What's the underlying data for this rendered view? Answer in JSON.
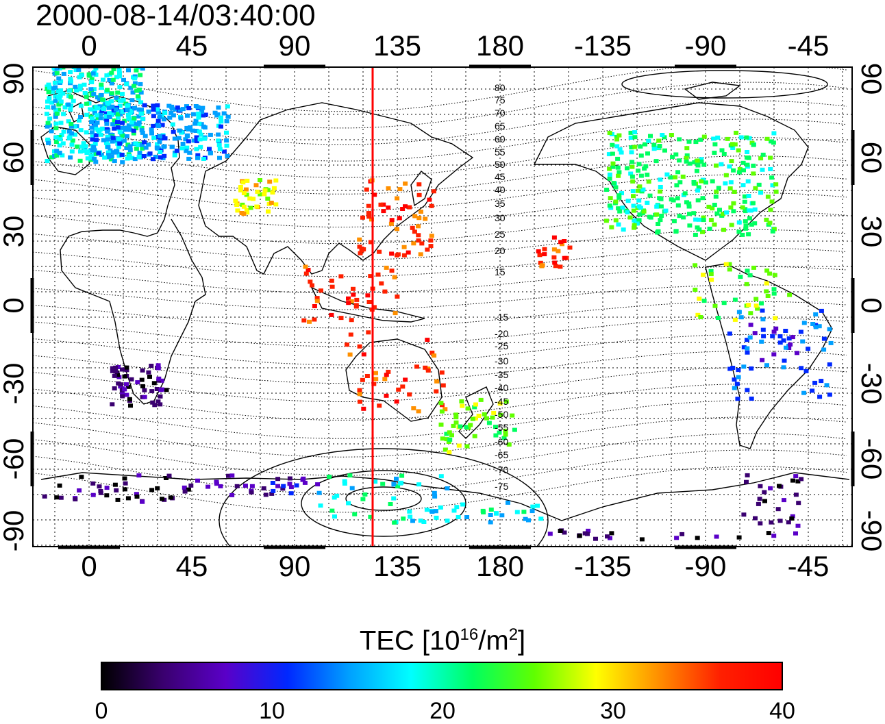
{
  "title": "2000-08-14/03:40:00",
  "top_axis_labels": [
    "0",
    "45",
    "90",
    "135",
    "180",
    "-135",
    "-90",
    "-45"
  ],
  "bottom_axis_labels": [
    "0",
    "45",
    "90",
    "135",
    "180",
    "-135",
    "-90",
    "-45"
  ],
  "left_axis_labels": [
    "90",
    "60",
    "30",
    "0",
    "-30",
    "-60",
    "-90"
  ],
  "right_axis_labels": [
    "90",
    "60",
    "30",
    "0",
    "-30",
    "-60",
    "-90"
  ],
  "contour_labels": [
    "80",
    "75",
    "70",
    "65",
    "60",
    "55",
    "50",
    "45",
    "40",
    "35",
    "30",
    "25",
    "20",
    "15",
    "-15",
    "-20",
    "-25",
    "-30",
    "-35",
    "-40",
    "-45",
    "-50",
    "-55",
    "-60",
    "-65",
    "-70",
    "-75"
  ],
  "colorbar": {
    "label_main": "TEC  [10",
    "label_exp1": "16",
    "label_mid": "/m",
    "label_exp2": "2",
    "label_end": "]",
    "tick_labels": [
      "0",
      "10",
      "20",
      "30",
      "40"
    ],
    "colors": [
      "#000000",
      "#3a0070",
      "#5a00c8",
      "#0028ff",
      "#00a0ff",
      "#00ffff",
      "#00ff60",
      "#60ff00",
      "#ffff00",
      "#ff9000",
      "#ff2000",
      "#ff0000"
    ]
  },
  "marker_color": "#ff0000"
}
